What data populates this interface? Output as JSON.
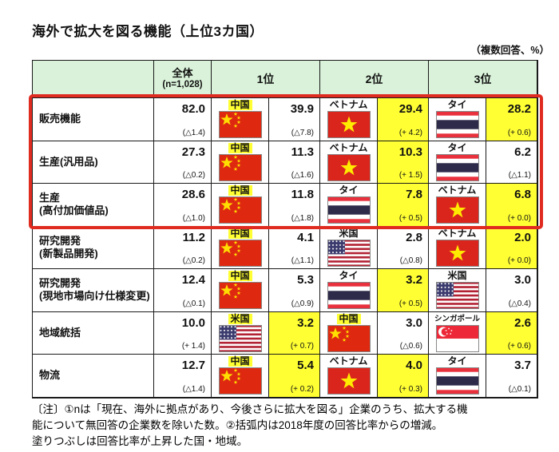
{
  "chart_data": {
    "type": "table",
    "title": "海外で拡大を図る機能（上位3カ国）",
    "unit_note": "（複数回答、%）",
    "columns": [
      "全体 (n=1,028)",
      "1位",
      "2位",
      "3位"
    ],
    "rows": [
      {
        "label_lines": [
          "販売機能"
        ],
        "overall": {
          "value": "82.0",
          "change": "(△1.4)"
        },
        "ranks": [
          {
            "rank": 1,
            "country": "中国",
            "flag": "china",
            "label_fill": true,
            "value": "39.9",
            "change": "(△7.8)",
            "value_fill": false
          },
          {
            "rank": 2,
            "country": "ベトナム",
            "flag": "vietnam",
            "label_fill": false,
            "value": "29.4",
            "change": "(+ 4.2)",
            "value_fill": true
          },
          {
            "rank": 3,
            "country": "タイ",
            "flag": "thailand",
            "label_fill": false,
            "value": "28.2",
            "change": "(+ 0.6)",
            "value_fill": true
          }
        ]
      },
      {
        "label_lines": [
          "生産(汎用品)"
        ],
        "overall": {
          "value": "27.3",
          "change": "(△0.2)"
        },
        "ranks": [
          {
            "rank": 1,
            "country": "中国",
            "flag": "china",
            "label_fill": true,
            "value": "11.3",
            "change": "(△1.6)",
            "value_fill": false
          },
          {
            "rank": 2,
            "country": "ベトナム",
            "flag": "vietnam",
            "label_fill": false,
            "value": "10.3",
            "change": "(+ 1.5)",
            "value_fill": true
          },
          {
            "rank": 3,
            "country": "タイ",
            "flag": "thailand",
            "label_fill": false,
            "value": "6.2",
            "change": "(△1.1)",
            "value_fill": false
          }
        ]
      },
      {
        "label_lines": [
          "生産",
          "(高付加価値品)"
        ],
        "overall": {
          "value": "28.6",
          "change": "(△1.0)"
        },
        "ranks": [
          {
            "rank": 1,
            "country": "中国",
            "flag": "china",
            "label_fill": true,
            "value": "11.8",
            "change": "(△1.8)",
            "value_fill": false
          },
          {
            "rank": 2,
            "country": "タイ",
            "flag": "thailand",
            "label_fill": false,
            "value": "7.8",
            "change": "(+ 0.5)",
            "value_fill": true
          },
          {
            "rank": 3,
            "country": "ベトナム",
            "flag": "vietnam",
            "label_fill": false,
            "value": "6.8",
            "change": "(+ 0.0)",
            "value_fill": true
          }
        ]
      },
      {
        "label_lines": [
          "研究開発",
          "(新製品開発)"
        ],
        "overall": {
          "value": "11.2",
          "change": "(△0.2)"
        },
        "ranks": [
          {
            "rank": 1,
            "country": "中国",
            "flag": "china",
            "label_fill": true,
            "value": "4.1",
            "change": "(△1.1)",
            "value_fill": false
          },
          {
            "rank": 2,
            "country": "米国",
            "flag": "usa",
            "label_fill": false,
            "value": "2.8",
            "change": "(△0.8)",
            "value_fill": false
          },
          {
            "rank": 3,
            "country": "ベトナム",
            "flag": "vietnam",
            "label_fill": false,
            "value": "2.0",
            "change": "(+ 0.0)",
            "value_fill": true
          }
        ]
      },
      {
        "label_lines": [
          "研究開発",
          "(現地市場向け仕様変更)"
        ],
        "overall": {
          "value": "12.4",
          "change": "(△0.1)"
        },
        "ranks": [
          {
            "rank": 1,
            "country": "中国",
            "flag": "china",
            "label_fill": true,
            "value": "5.3",
            "change": "(△0.9)",
            "value_fill": false
          },
          {
            "rank": 2,
            "country": "タイ",
            "flag": "thailand",
            "label_fill": false,
            "value": "3.2",
            "change": "(+ 0.5)",
            "value_fill": true
          },
          {
            "rank": 3,
            "country": "米国",
            "flag": "usa",
            "label_fill": false,
            "value": "3.0",
            "change": "(△0.4)",
            "value_fill": false
          }
        ]
      },
      {
        "label_lines": [
          "地域統括"
        ],
        "overall": {
          "value": "10.0",
          "change": "(+ 1.4)"
        },
        "ranks": [
          {
            "rank": 1,
            "country": "米国",
            "flag": "usa",
            "label_fill": true,
            "value": "3.2",
            "change": "(+ 0.7)",
            "value_fill": true
          },
          {
            "rank": 2,
            "country": "中国",
            "flag": "china",
            "label_fill": true,
            "value": "3.0",
            "change": "(△0.6)",
            "value_fill": false
          },
          {
            "rank": 3,
            "country": "シンガポール",
            "flag": "singapore",
            "label_fill": false,
            "value": "2.6",
            "change": "(+ 0.6)",
            "value_fill": true
          }
        ]
      },
      {
        "label_lines": [
          "物流"
        ],
        "overall": {
          "value": "12.7",
          "change": "(△1.4)"
        },
        "ranks": [
          {
            "rank": 1,
            "country": "中国",
            "flag": "china",
            "label_fill": true,
            "value": "5.4",
            "change": "(+ 0.2)",
            "value_fill": true
          },
          {
            "rank": 2,
            "country": "ベトナム",
            "flag": "vietnam",
            "label_fill": false,
            "value": "4.0",
            "change": "(+ 0.3)",
            "value_fill": true
          },
          {
            "rank": 3,
            "country": "タイ",
            "flag": "thailand",
            "label_fill": false,
            "value": "3.7",
            "change": "(△0.1)",
            "value_fill": false
          }
        ]
      }
    ],
    "red_highlight_row_indexes": [
      0,
      1,
      2
    ]
  },
  "table_header": {
    "overall": "全体",
    "overall_n": "(n=1,028)",
    "ranks": [
      "1位",
      "2位",
      "3位"
    ]
  },
  "footnote": {
    "lines": [
      "〔注〕①nは「現在、海外に拠点があり、今後さらに拡大を図る」企業のうち、拡大する機",
      "能について無回答の企業数を除いた数。②括弧内は2018年度の回答比率からの増減。",
      "塗りつぶしは回答比率が上昇した国・地域。"
    ]
  },
  "colors": {
    "header_green": "#d9f2d9",
    "fill_yellow": "#ffff33",
    "highlight_red": "#e02b20",
    "grid_line": "#1a1a1a"
  }
}
